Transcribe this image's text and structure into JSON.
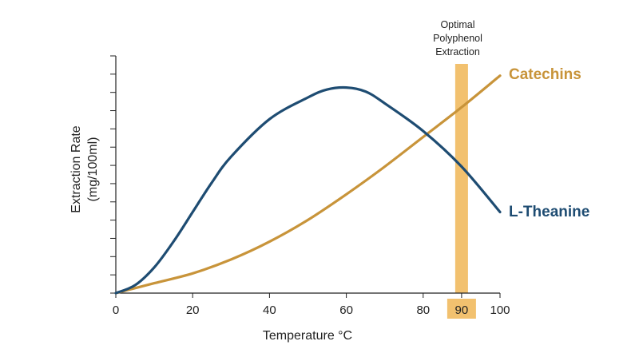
{
  "chart_data": {
    "type": "line",
    "title": "",
    "xlabel": "Temperature °C",
    "ylabel": "Extraction Rate (mg/100ml)",
    "ylabel_lines": [
      "Extraction Rate",
      "(mg/100ml)"
    ],
    "xlim": [
      0,
      100
    ],
    "ylim": [
      0,
      12
    ],
    "x_ticks": [
      0,
      20,
      40,
      60,
      80,
      90,
      100
    ],
    "x_tick_labels": [
      "0",
      "20",
      "40",
      "60",
      "80",
      "90",
      "100"
    ],
    "highlight_tick": 90,
    "y_tick_count": 14,
    "y_tick_labels_shown": false,
    "grid": false,
    "legend": "inline-right",
    "series": [
      {
        "name": "Catechins",
        "color": "#c8943a",
        "x": [
          0,
          10,
          20,
          30,
          40,
          50,
          60,
          70,
          80,
          90,
          100
        ],
        "y": [
          0,
          0.5,
          1.0,
          1.7,
          2.6,
          3.7,
          5.0,
          6.4,
          7.9,
          9.4,
          11.0
        ]
      },
      {
        "name": "L-Theanine",
        "color": "#1e4c72",
        "x": [
          0,
          5,
          10,
          15,
          20,
          25,
          30,
          40,
          50,
          55,
          60,
          65,
          70,
          80,
          90,
          100
        ],
        "y": [
          0,
          0.4,
          1.3,
          2.6,
          4.1,
          5.6,
          6.9,
          8.8,
          9.9,
          10.3,
          10.4,
          10.2,
          9.6,
          8.2,
          6.4,
          4.1
        ]
      }
    ],
    "annotations": [
      {
        "label_lines": [
          "Optimal",
          "Polyphenol",
          "Extraction"
        ],
        "band_center": 90,
        "band_color": "#f2c16f"
      }
    ]
  }
}
